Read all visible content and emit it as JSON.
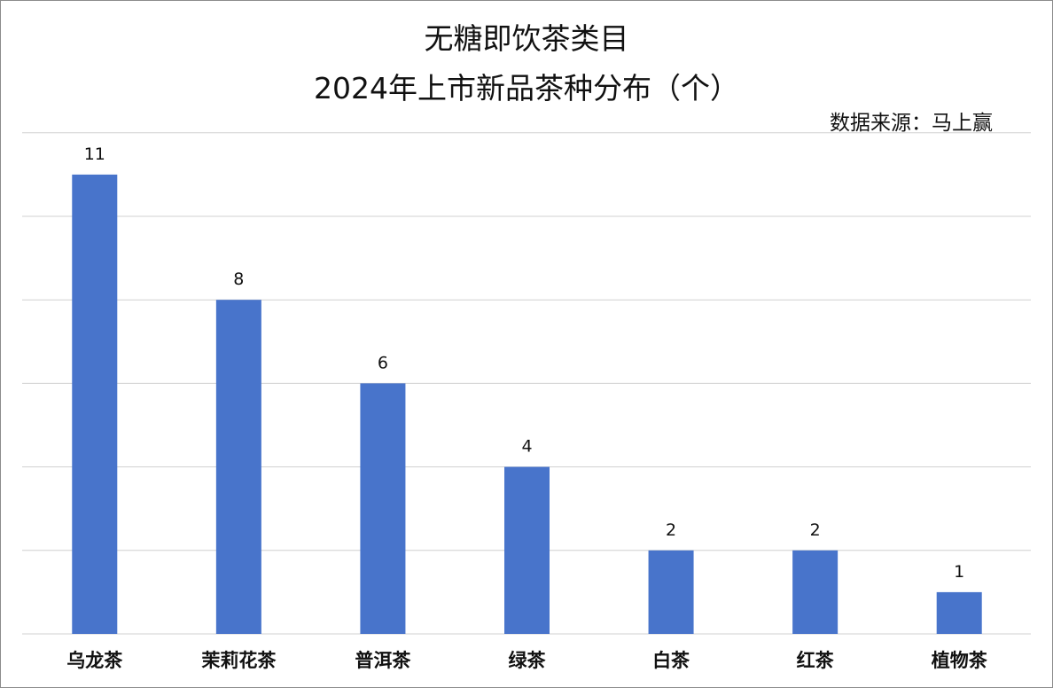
{
  "chart_data": {
    "type": "bar",
    "title_line1": "无糖即饮茶类目",
    "title_line2": "2024年上市新品茶种分布（个）",
    "source": "数据来源：马上赢",
    "categories": [
      "乌龙茶",
      "茉莉花茶",
      "普洱茶",
      "绿茶",
      "白茶",
      "红茶",
      "植物茶"
    ],
    "values": [
      11,
      8,
      6,
      4,
      2,
      2,
      1
    ],
    "ylim": [
      0,
      12
    ],
    "grid": true,
    "bar_color": "#4874cb",
    "grid_color": "#d0d0d0"
  }
}
